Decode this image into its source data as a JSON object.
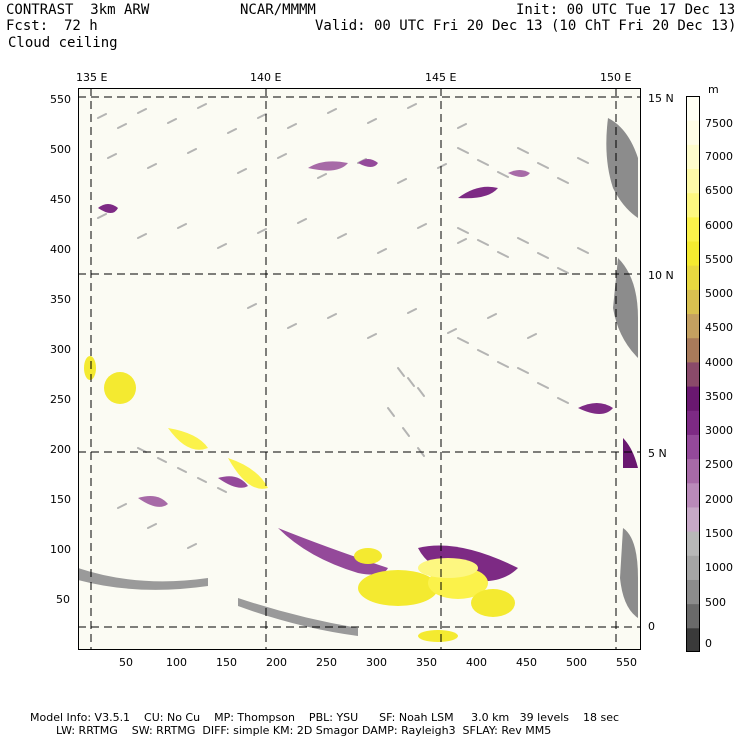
{
  "header": {
    "model": "CONTRAST  3km ARW",
    "fcst_label": "Fcst:",
    "fcst_value": "72 h",
    "field": "Cloud ceiling",
    "institution": "NCAR/MMMM",
    "init": "Init: 00 UTC Tue 17 Dec 13",
    "valid": "Valid: 00 UTC Fri 20 Dec 13 (10 ChT Fri 20 Dec 13)"
  },
  "map": {
    "lon_labels": [
      "135 E",
      "140 E",
      "145 E",
      "150 E"
    ],
    "lat_labels": [
      "15 N",
      "10 N",
      "5 N",
      "0"
    ],
    "x_ticks": [
      "50",
      "100",
      "150",
      "200",
      "250",
      "300",
      "350",
      "400",
      "450",
      "500",
      "550"
    ],
    "y_ticks": [
      "550",
      "500",
      "450",
      "400",
      "350",
      "300",
      "250",
      "200",
      "150",
      "100",
      "50"
    ],
    "background_color": "#fbfbf3"
  },
  "colorbar": {
    "unit": "m",
    "labels": [
      "7500",
      "7000",
      "6500",
      "6000",
      "5500",
      "5000",
      "4500",
      "4000",
      "3500",
      "3000",
      "2500",
      "2000",
      "1500",
      "1000",
      "500",
      "0"
    ],
    "colors": [
      "#3a3a3a",
      "#6a6a6a",
      "#8c8c8c",
      "#a5a5a5",
      "#b8b8b8",
      "#c7a9c7",
      "#b98ab9",
      "#a76aa7",
      "#94499a",
      "#7d2a84",
      "#6a1870",
      "#8a4a6a",
      "#a87a5a",
      "#c4a060",
      "#d8c050",
      "#e8d840",
      "#f4ea30",
      "#fbf24a",
      "#fdf780",
      "#fefaa8",
      "#fefccc",
      "#fffde6",
      "#fffff4"
    ]
  },
  "footer": {
    "line1": "Model Info: V3.5.1    CU: No Cu    MP: Thompson    PBL: YSU      SF: Noah LSM     3.0 km   39 levels    18 sec",
    "line2": "LW: RRTMG    SW: RRTMG  DIFF: simple KM: 2D Smagor DAMP: Rayleigh3  SFLAY: Rev MM5"
  }
}
